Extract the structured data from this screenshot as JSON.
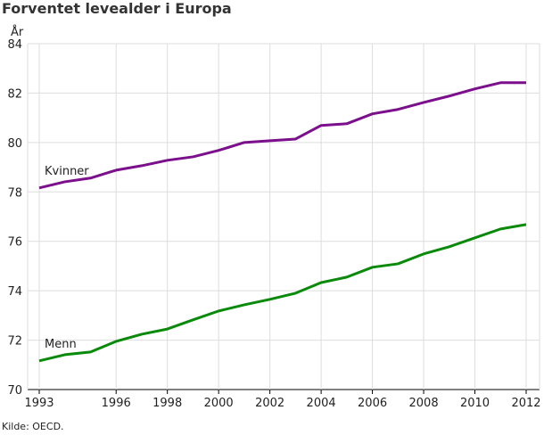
{
  "title": "Forventet levealder i Europa",
  "source": "Kilde: OECD.",
  "chart_data": {
    "type": "line",
    "title": "Forventet levealder i Europa",
    "ylabel": "År",
    "xlabel": "",
    "ylim": [
      70,
      84
    ],
    "yticks": [
      70,
      72,
      74,
      76,
      78,
      80,
      82,
      84
    ],
    "xticks": [
      1993,
      1996,
      1998,
      2000,
      2002,
      2004,
      2006,
      2008,
      2010,
      2012
    ],
    "grid": true,
    "x": [
      1993,
      1994,
      1995,
      1996,
      1997,
      1998,
      1999,
      2000,
      2001,
      2002,
      2003,
      2004,
      2005,
      2006,
      2007,
      2008,
      2009,
      2010,
      2011,
      2012
    ],
    "series": [
      {
        "name": "Kvinner",
        "color": "#7b0f8c",
        "values": [
          78.16,
          78.41,
          78.56,
          78.88,
          79.06,
          79.28,
          79.42,
          79.68,
          80.0,
          80.07,
          80.14,
          80.69,
          80.76,
          81.16,
          81.34,
          81.62,
          81.88,
          82.17,
          82.42,
          82.42
        ]
      },
      {
        "name": "Menn",
        "color": "#0a8a0a",
        "values": [
          71.16,
          71.41,
          71.52,
          71.95,
          72.24,
          72.45,
          72.82,
          73.18,
          73.43,
          73.65,
          73.9,
          74.33,
          74.55,
          74.95,
          75.09,
          75.49,
          75.78,
          76.14,
          76.5,
          76.68
        ]
      }
    ]
  }
}
